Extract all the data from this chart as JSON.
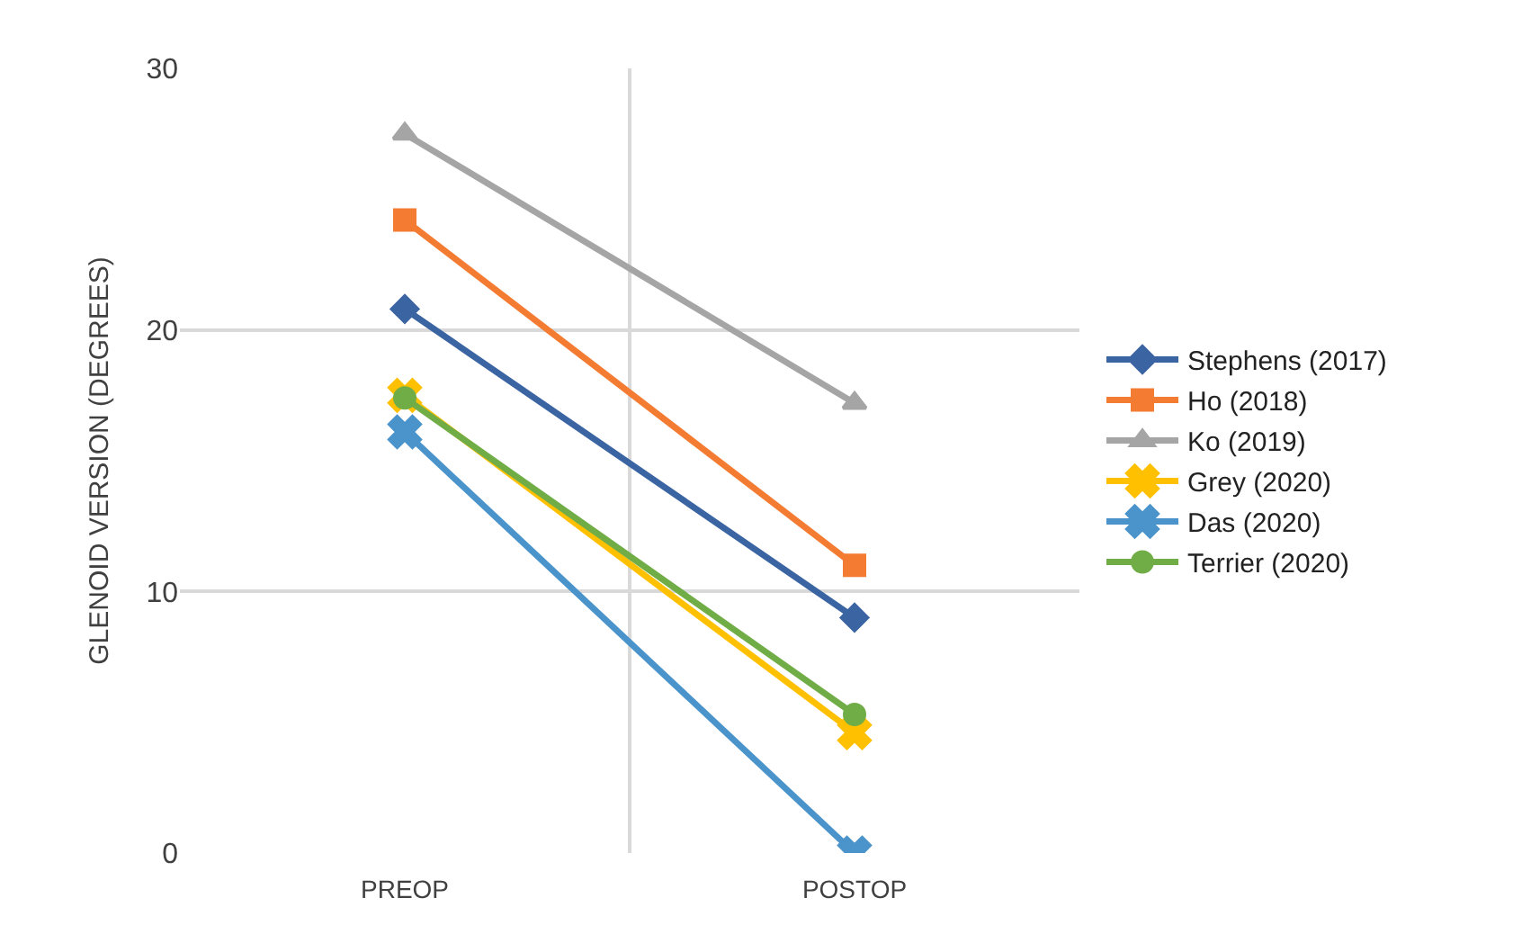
{
  "chart_data": {
    "type": "line",
    "ylabel": "GLENOID VERSION (DEGREES)",
    "categories": [
      "PREOP",
      "POSTOP"
    ],
    "series": [
      {
        "name": "Stephens (2017)",
        "color": "#3b64a3",
        "marker": "diamond",
        "values": [
          20.8,
          9.0
        ]
      },
      {
        "name": "Ho (2018)",
        "color": "#f47b32",
        "marker": "square",
        "values": [
          24.2,
          11.0
        ]
      },
      {
        "name": "Ko (2019)",
        "color": "#a5a5a5",
        "marker": "triangle",
        "values": [
          27.5,
          17.2
        ]
      },
      {
        "name": "Grey (2020)",
        "color": "#ffc000",
        "marker": "cross",
        "values": [
          17.5,
          4.6
        ]
      },
      {
        "name": "Das (2020)",
        "color": "#4a94cb",
        "marker": "cross",
        "values": [
          16.1,
          0
        ]
      },
      {
        "name": "Terrier (2020)",
        "color": "#70ad47",
        "marker": "circle",
        "values": [
          17.4,
          5.3
        ]
      }
    ],
    "ylim": [
      0,
      30
    ],
    "yticks": [
      0,
      10,
      20,
      30
    ],
    "grid": true,
    "legend": "right",
    "line_style": "solid"
  }
}
